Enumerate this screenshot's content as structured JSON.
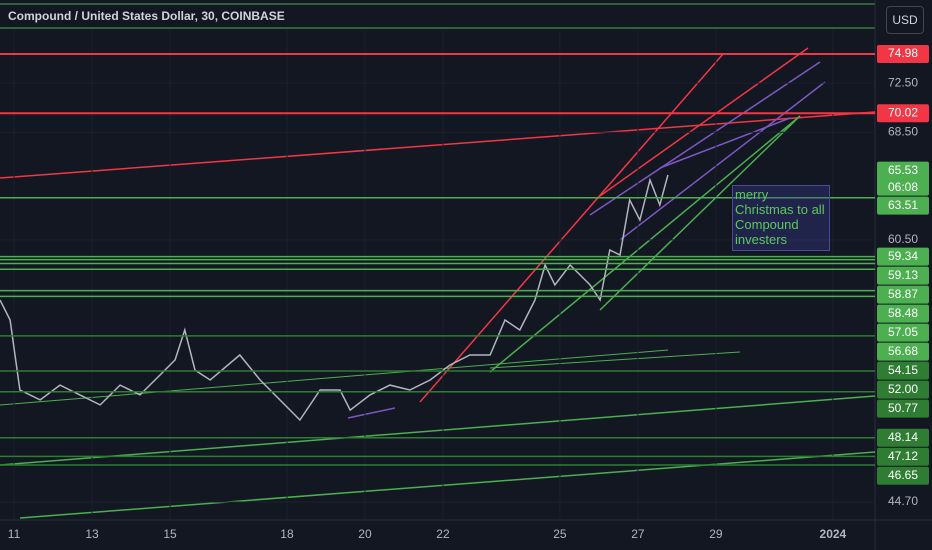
{
  "chart_data": {
    "type": "line",
    "title": "Compound / United States Dollar, 30, COINBASE",
    "currency": "USD",
    "color": "#b2b5be",
    "log_scale": true,
    "x": [
      10.64,
      10.9,
      11.15,
      11.67,
      12.18,
      12.69,
      13.21,
      13.72,
      14.23,
      14.74,
      15.13,
      15.38,
      15.64,
      16.03,
      16.79,
      17.31,
      18.08,
      18.33,
      18.85,
      19.36,
      19.62,
      20.13,
      20.64,
      21.15,
      21.67,
      22.18,
      22.69,
      23.21,
      23.59,
      23.97,
      24.36,
      24.62,
      24.87,
      25.26,
      25.77,
      26.03,
      26.28,
      26.54,
      26.79,
      27.05,
      27.31,
      27.56,
      27.77
    ],
    "values": [
      56.44,
      55.15,
      50.87,
      50.29,
      51.16,
      50.58,
      50.0,
      51.16,
      50.58,
      51.75,
      52.67,
      54.52,
      52.05,
      51.46,
      52.97,
      51.46,
      49.7,
      49.14,
      50.87,
      50.87,
      49.7,
      50.58,
      51.16,
      50.87,
      51.46,
      52.36,
      52.97,
      52.97,
      55.15,
      54.52,
      56.44,
      58.77,
      57.43,
      58.77,
      57.43,
      56.44,
      59.79,
      59.45,
      63.35,
      61.9,
      64.83,
      62.98,
      65.2
    ],
    "xlim": [
      10.64,
      33.08
    ],
    "xticks": [
      11,
      13,
      15,
      18,
      20,
      22,
      25,
      27,
      29,
      {
        "value": 32,
        "label": "2024"
      }
    ],
    "ylim": [
      43.78,
      79.8
    ],
    "yticks": [
      {
        "value": 72.5,
        "label": "72.50"
      },
      {
        "value": 68.5,
        "label": "68.50"
      },
      {
        "value": 60.5,
        "label": "60.50"
      },
      {
        "value": 44.7,
        "label": "44.70"
      }
    ],
    "countdown": "06:08",
    "price_levels": [
      {
        "value": 74.98,
        "color": "#f23645"
      },
      {
        "value": 70.02,
        "color": "#f23645"
      },
      {
        "value": 65.53,
        "color": "#4caf50",
        "line": false
      },
      {
        "value": 63.51,
        "color": "#4caf50"
      },
      {
        "value": 59.34,
        "color": "#4caf50"
      },
      {
        "value": 59.13,
        "color": "#4caf50"
      },
      {
        "value": 58.87,
        "color": "#4caf50"
      },
      {
        "value": 58.48,
        "color": "#4caf50"
      },
      {
        "value": 57.05,
        "color": "#4caf50"
      },
      {
        "value": 56.68,
        "color": "#4caf50"
      },
      {
        "value": 54.15,
        "color": "#2e7d32"
      },
      {
        "value": 52,
        "label": "52.00",
        "color": "#2e7d32"
      },
      {
        "value": 50.77,
        "color": "#2e7d32"
      },
      {
        "value": 48.14,
        "color": "#2e7d32"
      },
      {
        "value": 47.12,
        "color": "#2e7d32"
      },
      {
        "value": 46.65,
        "color": "#2e7d32"
      }
    ],
    "annotation": "merry Christmas to all Compound investers"
  }
}
